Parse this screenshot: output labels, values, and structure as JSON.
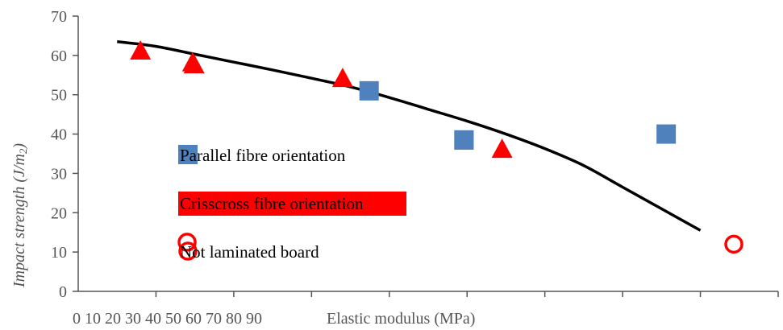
{
  "chart_data": {
    "type": "scatter",
    "title": "",
    "xlabel": "Elastic modulus (MPa)",
    "ylabel": "Impact strength (J/m2)",
    "ylabel_main": "Impact strength ",
    "ylabel_unit": "(J/m",
    "ylabel_sub": "2",
    "ylabel_close": ")",
    "xlim": [
      0,
      90
    ],
    "ylim": [
      0,
      70
    ],
    "x_tick_text": "0 10 20 30 40 50 60 70 80 90",
    "y_ticks": [
      "0",
      "10",
      "20",
      "30",
      "40",
      "50",
      "60",
      "70"
    ],
    "grid": false,
    "legend_position": "inside-left",
    "series": [
      {
        "name": "Parallel fibre orientation",
        "marker": "square",
        "color": "#4f81bd",
        "points": [
          [
            49.6,
            38.5
          ],
          [
            49.6,
            38.5
          ],
          [
            37.4,
            51
          ],
          [
            75.6,
            40
          ]
        ]
      },
      {
        "name": "Crisscross fibre orientation",
        "marker": "triangle",
        "color": "#ff0000",
        "points": [
          [
            8.0,
            61
          ],
          [
            14.7,
            58
          ],
          [
            14.9,
            57.5
          ],
          [
            34.0,
            54
          ],
          [
            54.5,
            36
          ]
        ]
      },
      {
        "name": "Not laminated board",
        "marker": "circle-open",
        "color": "#ff0000",
        "points": [
          [
            14.0,
            12.5
          ],
          [
            84.3,
            12
          ]
        ]
      }
    ],
    "trendline": {
      "color": "#000000",
      "points": [
        [
          5,
          63.5
        ],
        [
          10,
          62.3
        ],
        [
          15,
          60.3
        ],
        [
          20,
          58.3
        ],
        [
          25,
          56.3
        ],
        [
          30,
          54.2
        ],
        [
          35,
          52
        ],
        [
          40,
          49.3
        ],
        [
          45,
          46.3
        ],
        [
          50,
          43.3
        ],
        [
          55,
          40
        ],
        [
          60,
          36.3
        ],
        [
          65,
          32
        ],
        [
          70,
          26.5
        ],
        [
          75,
          21
        ],
        [
          80,
          15.5
        ]
      ]
    }
  },
  "colors": {
    "axis": "#555555",
    "legend_highlight": "#ff0000"
  }
}
